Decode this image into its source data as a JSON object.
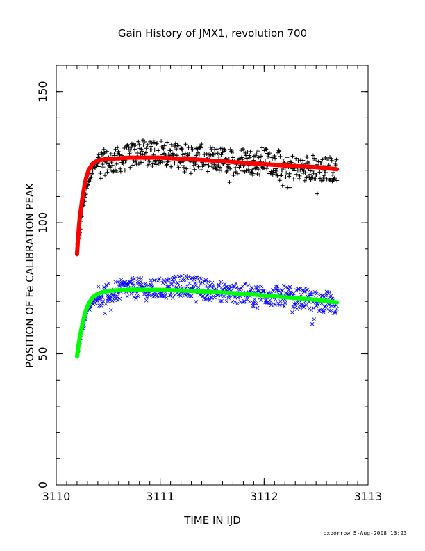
{
  "chart_data": {
    "type": "scatter",
    "title": "Gain History of JMX1, revolution 700",
    "xlabel": "TIME IN IJD",
    "ylabel": "POSITION OF Fe CALIBRATION PEAK",
    "xlim": [
      3110,
      3113
    ],
    "ylim": [
      0,
      160
    ],
    "x_ticks": [
      "3110",
      "3111",
      "3112",
      "3113"
    ],
    "y_ticks": [
      "0",
      "50",
      "100",
      "150"
    ],
    "grid": false,
    "legend": "none",
    "series": [
      {
        "marker": "+",
        "color": "#000000",
        "x_range": [
          3110.2,
          3112.7
        ],
        "x": [
          3110.2,
          3110.25,
          3110.3,
          3110.35,
          3110.4,
          3110.5,
          3110.6,
          3110.7,
          3110.8,
          3110.9,
          3111.0,
          3111.1,
          3111.2,
          3111.3,
          3111.4,
          3111.5,
          3111.6,
          3111.7,
          3111.8,
          3111.9,
          3112.0,
          3112.1,
          3112.2,
          3112.3,
          3112.4,
          3112.5,
          3112.6,
          3112.7
        ],
        "values": [
          89,
          104,
          115,
          120,
          123,
          123,
          124,
          125,
          127,
          126,
          127,
          126,
          126,
          125,
          125,
          124,
          124,
          123,
          124,
          123,
          124,
          123,
          122,
          121,
          121,
          121,
          120,
          121
        ],
        "scatter": 5
      },
      {
        "type": "line",
        "color": "#ff0000",
        "x": [
          3110.2,
          3110.22,
          3110.25,
          3110.28,
          3110.31,
          3110.35,
          3110.4,
          3110.5,
          3110.7,
          3111.0,
          3111.3,
          3111.6,
          3111.9,
          3112.2,
          3112.5,
          3112.7
        ],
        "values": [
          88,
          100,
          109,
          116,
          120,
          122.5,
          123.8,
          124.3,
          124.8,
          124.8,
          124.2,
          123.4,
          122.6,
          121.8,
          121.2,
          120.4
        ]
      },
      {
        "marker": "x",
        "color": "#0000ff",
        "x": [
          3110.2,
          3110.25,
          3110.3,
          3110.35,
          3110.4,
          3110.5,
          3110.6,
          3110.7,
          3110.8,
          3110.9,
          3111.0,
          3111.1,
          3111.2,
          3111.3,
          3111.4,
          3111.5,
          3111.6,
          3111.7,
          3111.8,
          3111.9,
          3112.0,
          3112.1,
          3112.2,
          3112.3,
          3112.4,
          3112.5,
          3112.6,
          3112.7
        ],
        "values": [
          50,
          60,
          67,
          70,
          72,
          73,
          74,
          75,
          75,
          74,
          75,
          75,
          76,
          76,
          75,
          74,
          74,
          73,
          73,
          72,
          73,
          72,
          72,
          71,
          71,
          70,
          70,
          69
        ],
        "scatter": 4
      },
      {
        "type": "line",
        "color": "#00ff00",
        "x": [
          3110.2,
          3110.22,
          3110.25,
          3110.28,
          3110.31,
          3110.35,
          3110.4,
          3110.5,
          3110.7,
          3111.0,
          3111.3,
          3111.6,
          3111.9,
          3112.2,
          3112.5,
          3112.7
        ],
        "values": [
          49,
          55,
          61,
          66,
          69,
          71.5,
          73,
          74,
          74.5,
          74.4,
          74,
          73.4,
          72.6,
          71.6,
          70.6,
          69.6
        ]
      }
    ]
  },
  "footer": {
    "text": "oxborrow  5-Aug-2008 13:23"
  }
}
